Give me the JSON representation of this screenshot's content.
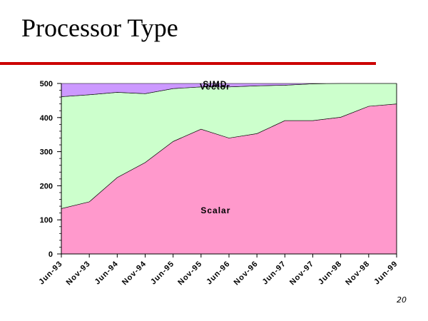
{
  "slide": {
    "title": "Processor Type",
    "page_number": "20",
    "rule_color": "#cc0000"
  },
  "chart_data": {
    "type": "area",
    "stacked": true,
    "categories": [
      "Jun-93",
      "Nov-93",
      "Jun-94",
      "Nov-94",
      "Jun-95",
      "Nov-95",
      "Jun-96",
      "Nov-96",
      "Jun-97",
      "Nov-97",
      "Jun-98",
      "Nov-98",
      "Jun-99"
    ],
    "ylim": [
      0,
      500
    ],
    "yticks": [
      0,
      100,
      200,
      300,
      400,
      500
    ],
    "grid": false,
    "series": [
      {
        "name": "Scalar",
        "color": "#ff99cc",
        "values": [
          133,
          153,
          224,
          268,
          330,
          366,
          340,
          353,
          391,
          391,
          401,
          433,
          440
        ]
      },
      {
        "name": "Vector",
        "color": "#ccffcc",
        "values": [
          328,
          314,
          250,
          202,
          155,
          124,
          150,
          140,
          104,
          108,
          99,
          67,
          60
        ]
      },
      {
        "name": "SIMD",
        "color": "#cc99ff",
        "values": [
          39,
          33,
          26,
          30,
          15,
          10,
          10,
          7,
          5,
          1,
          0,
          0,
          0
        ]
      }
    ],
    "area_labels": [
      "Scalar",
      "Vector",
      "SIMD"
    ]
  }
}
